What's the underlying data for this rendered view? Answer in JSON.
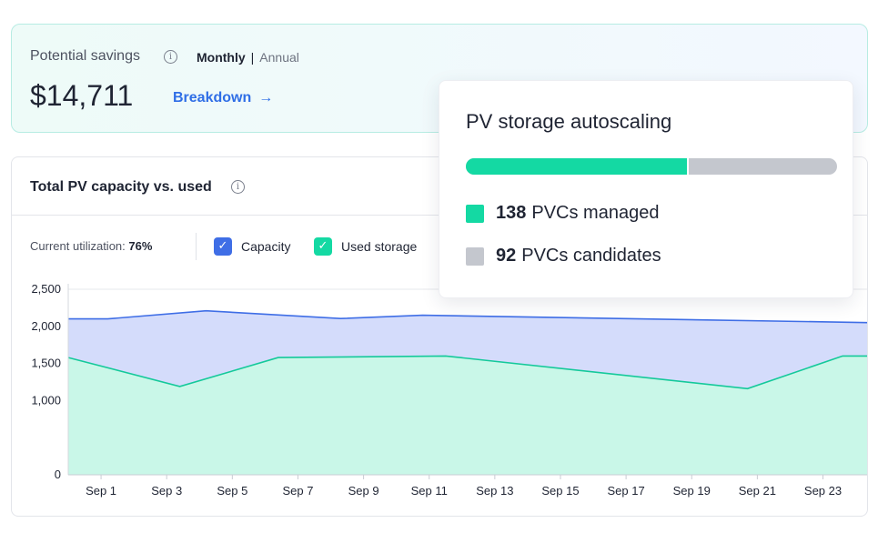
{
  "savings": {
    "title": "Potential savings",
    "info_glyph": "i",
    "period_monthly": "Monthly",
    "period_separator": "|",
    "period_annual": "Annual",
    "selected_period": "Monthly",
    "value": "$14,711",
    "breakdown_label": "Breakdown",
    "breakdown_arrow": "→"
  },
  "chart_card": {
    "title": "Total PV capacity vs. used",
    "info_glyph": "i",
    "utilization_label": "Current utilization:",
    "utilization_value": "76%",
    "legend": [
      {
        "label": "Capacity",
        "checked": true,
        "color": "#3f6ee6",
        "check_glyph": "✓"
      },
      {
        "label": "Used storage",
        "checked": true,
        "color": "#14d9a3",
        "check_glyph": "✓"
      }
    ]
  },
  "chart_data": {
    "type": "area",
    "title": "Total PV capacity vs. used",
    "xlabel": "",
    "ylabel": "",
    "ylim": [
      0,
      2500
    ],
    "y_ticks": [
      0,
      1000,
      1500,
      2000,
      2500
    ],
    "y_tick_labels": [
      "0",
      "1,000",
      "1,500",
      "2,000",
      "2,500"
    ],
    "x_tick_labels": [
      "Sep 1",
      "Sep 3",
      "Sep 5",
      "Sep 7",
      "Sep 9",
      "Sep 11",
      "Sep 13",
      "Sep 15",
      "Sep 17",
      "Sep 19",
      "Sep 21",
      "Sep 23"
    ],
    "x_tick_days": [
      1,
      3,
      5,
      7,
      9,
      11,
      13,
      15,
      17,
      19,
      21,
      23
    ],
    "xlim": [
      0,
      24.4
    ],
    "grid": true,
    "series": [
      {
        "name": "Capacity",
        "color": "#3f6ee6",
        "fill": "#d4dcfb",
        "x": [
          0,
          1.2,
          4.2,
          8.3,
          10.8,
          24.4
        ],
        "y": [
          2100,
          2100,
          2210,
          2105,
          2150,
          2050
        ]
      },
      {
        "name": "Used storage",
        "color": "#14c99a",
        "fill": "#c9f7e8",
        "x": [
          0,
          3.4,
          6.4,
          11.5,
          20.7,
          23.6,
          24.4
        ],
        "y": [
          1580,
          1190,
          1580,
          1600,
          1160,
          1600,
          1600
        ]
      }
    ]
  },
  "popup": {
    "title": "PV storage autoscaling",
    "progress_fraction": 0.6,
    "managed_count": "138",
    "managed_label": "PVCs managed",
    "managed_color": "#14d9a3",
    "candidates_count": "92",
    "candidates_label": "PVCs candidates",
    "candidates_color": "#c4c7ce"
  }
}
